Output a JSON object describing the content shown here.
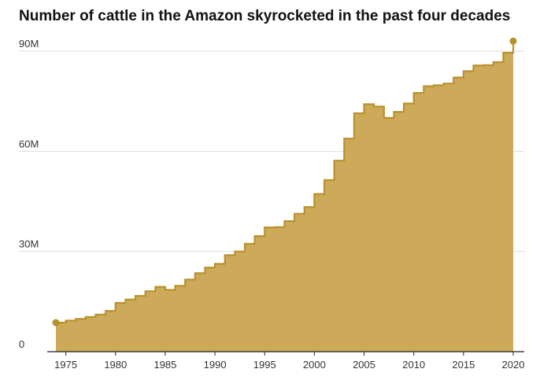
{
  "chart_data": {
    "type": "area",
    "title": "Number of cattle in the Amazon skyrocketed in the past four decades",
    "xlabel": "",
    "ylabel": "",
    "xlim": [
      1974,
      2020
    ],
    "ylim": [
      0,
      90
    ],
    "grid": true,
    "step": true,
    "x_ticks": [
      1975,
      1980,
      1985,
      1990,
      1995,
      2000,
      2005,
      2010,
      2015,
      2020
    ],
    "x_tick_labels": [
      "1975",
      "1980",
      "1985",
      "1990",
      "1995",
      "2000",
      "2005",
      "2010",
      "2015",
      "2020"
    ],
    "y_ticks": [
      0,
      30,
      60,
      90
    ],
    "y_tick_labels": [
      "0",
      "30M",
      "60M",
      "90M"
    ],
    "color": "#c9a34b",
    "line_color": "#b8912f",
    "x": [
      1974,
      1975,
      1976,
      1977,
      1978,
      1979,
      1980,
      1981,
      1982,
      1983,
      1984,
      1985,
      1986,
      1987,
      1988,
      1989,
      1990,
      1991,
      1992,
      1993,
      1994,
      1995,
      1996,
      1997,
      1998,
      1999,
      2000,
      2001,
      2002,
      2003,
      2004,
      2005,
      2006,
      2007,
      2008,
      2009,
      2010,
      2011,
      2012,
      2013,
      2014,
      2015,
      2016,
      2017,
      2018,
      2019,
      2020
    ],
    "values": [
      8.7,
      9.3,
      9.8,
      10.4,
      11.1,
      12.2,
      14.6,
      15.6,
      16.7,
      18.1,
      19.4,
      18.5,
      19.7,
      21.6,
      23.5,
      25.2,
      26.3,
      28.9,
      30.0,
      32.3,
      34.6,
      37.2,
      37.3,
      39.1,
      41.3,
      43.3,
      47.2,
      51.4,
      57.2,
      63.8,
      71.4,
      74.1,
      73.4,
      70.0,
      71.8,
      74.3,
      77.5,
      79.5,
      79.8,
      80.3,
      82.1,
      84.0,
      85.7,
      85.8,
      86.7,
      89.5,
      93.0
    ],
    "series_name": "Cattle"
  }
}
